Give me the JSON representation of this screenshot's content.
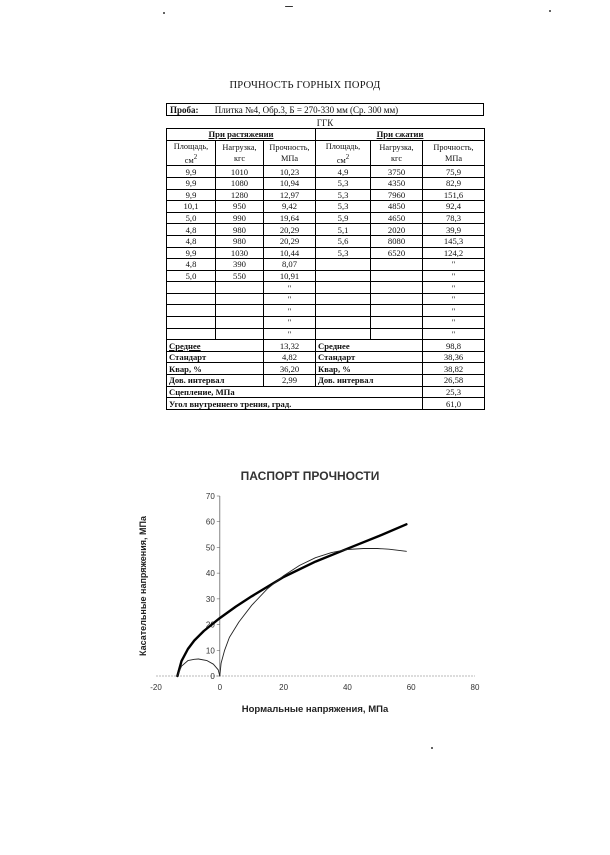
{
  "document": {
    "title": "ПРОЧНОСТЬ ГОРНЫХ ПОРОД",
    "probe_label": "Проба:",
    "probe_value": "Плитка №4, Обр.3, Б = 270-330 мм (Ср. 300 мм)",
    "group": "ГГК",
    "tension_header": "При растяжении",
    "compression_header": "При сжатии",
    "columns": {
      "area": "Площадь, см²",
      "load": "Нагрузка, кгс",
      "strength": "Прочность, МПа"
    },
    "tension_rows": [
      [
        "9,9",
        "1010",
        "10,23"
      ],
      [
        "9,9",
        "1080",
        "10,94"
      ],
      [
        "9,9",
        "1280",
        "12,97"
      ],
      [
        "10,1",
        "950",
        "9,42"
      ],
      [
        "5,0",
        "990",
        "19,64"
      ],
      [
        "4,8",
        "980",
        "20,29"
      ],
      [
        "4,8",
        "980",
        "20,29"
      ],
      [
        "9,9",
        "1030",
        "10,44"
      ],
      [
        "4,8",
        "390",
        "8,07"
      ],
      [
        "5,0",
        "550",
        "10,91"
      ],
      [
        "",
        "",
        "\""
      ],
      [
        "",
        "",
        "\""
      ],
      [
        "",
        "",
        "\""
      ],
      [
        "",
        "",
        "\""
      ],
      [
        "",
        "",
        "\""
      ]
    ],
    "compression_rows": [
      [
        "4,9",
        "3750",
        "75,9"
      ],
      [
        "5,3",
        "4350",
        "82,9"
      ],
      [
        "5,3",
        "7960",
        "151,6"
      ],
      [
        "5,3",
        "4850",
        "92,4"
      ],
      [
        "5,9",
        "4650",
        "78,3"
      ],
      [
        "5,1",
        "2020",
        "39,9"
      ],
      [
        "5,6",
        "8080",
        "145,3"
      ],
      [
        "5,3",
        "6520",
        "124,2"
      ],
      [
        "",
        "",
        "\""
      ],
      [
        "",
        "",
        "\""
      ],
      [
        "",
        "",
        "\""
      ],
      [
        "",
        "",
        "\""
      ],
      [
        "",
        "",
        "\""
      ],
      [
        "",
        "",
        "\""
      ],
      [
        "",
        "",
        "\""
      ]
    ],
    "stats": {
      "mean_label": "Среднее",
      "std_label": "Стандарт",
      "var_label": "Квар, %",
      "ci_label": "Дов. интервал",
      "tension": {
        "mean": "13,32",
        "std": "4,82",
        "var": "36,20",
        "ci": "2,99"
      },
      "compression": {
        "mean": "98,8",
        "std": "38,36",
        "var": "38,82",
        "ci": "26,58"
      }
    },
    "cohesion_label": "Сцепление, МПа",
    "cohesion_value": "25,3",
    "friction_label": "Угол внутреннего трения, град.",
    "friction_value": "61,0"
  },
  "chart_data": {
    "type": "line",
    "title": "ПАСПОРТ ПРОЧНОСТИ",
    "xlabel": "Нормальные напряжения, МПа",
    "ylabel": "Касательные напряжения, МПа",
    "xlim": [
      -20,
      80
    ],
    "ylim": [
      0,
      70
    ],
    "x_ticks": [
      -20,
      0,
      20,
      40,
      60,
      80
    ],
    "y_ticks": [
      0,
      10,
      20,
      30,
      40,
      50,
      60,
      70
    ],
    "grid": false,
    "series": [
      {
        "style": "thick",
        "x": [
          -13.3,
          -12,
          -10,
          -8,
          -5,
          0,
          5,
          10,
          20,
          30,
          40,
          50,
          58.5
        ],
        "y": [
          0,
          5.8,
          10.5,
          13.8,
          17.5,
          22.5,
          27,
          31,
          38.5,
          44.5,
          49.5,
          54.5,
          59
        ]
      },
      {
        "style": "thin-envelope",
        "x": [
          -13.3,
          -12,
          -10,
          -8,
          -6.7
        ],
        "y": [
          0,
          3.8,
          6,
          6.5,
          6.6
        ]
      },
      {
        "style": "thin-arc-small",
        "x": [
          -6.7,
          -4,
          -2,
          -0.5,
          0
        ],
        "y": [
          6.6,
          6,
          4.6,
          2.4,
          0
        ]
      },
      {
        "style": "thin-arc-large",
        "x": [
          0,
          0.4,
          1.5,
          3,
          6,
          10,
          15,
          20,
          25,
          30,
          35,
          40,
          45,
          49.4,
          53,
          58.5
        ],
        "y": [
          0,
          5,
          10,
          15,
          21,
          27.5,
          34,
          39,
          43,
          46,
          48,
          49.2,
          49.6,
          49.6,
          49.3,
          48.5
        ]
      }
    ]
  }
}
